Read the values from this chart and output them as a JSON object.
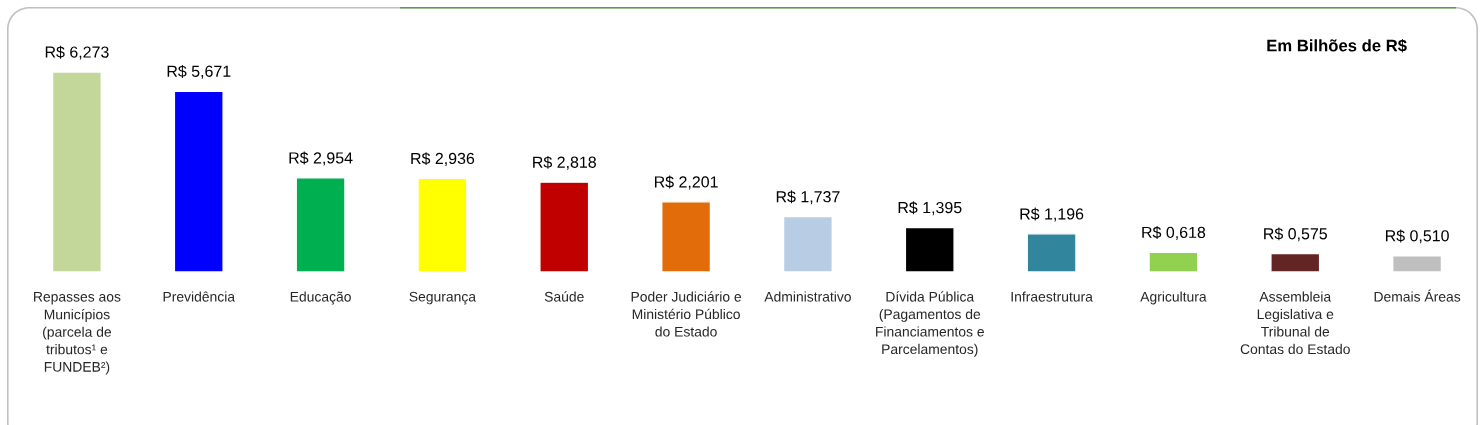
{
  "chart_data": {
    "type": "bar",
    "title": "Em Bilhões de R$",
    "categories": [
      "Repasses aos\nMunicípios\n(parcela de\ntributos¹ e\nFUNDEB²)",
      "Previdência",
      "Educação",
      "Segurança",
      "Saúde",
      "Poder Judiciário e\nMinistério Público\ndo Estado",
      "Administrativo",
      "Dívida Pública\n(Pagamentos de\nFinanciamentos e\nParcelamentos)",
      "Infraestrutura",
      "Agricultura",
      "Assembleia\nLegislativa e\nTribunal de\nContas do Estado",
      "Demais Áreas"
    ],
    "values": [
      6.273,
      5.671,
      2.954,
      2.936,
      2.818,
      2.201,
      1.737,
      1.395,
      1.196,
      0.618,
      0.575,
      0.51
    ],
    "colors": [
      "#c4d79b",
      "#0000ff",
      "#00b050",
      "#ffff00",
      "#c00000",
      "#e26b0a",
      "#b8cce4",
      "#000000",
      "#31859c",
      "#92d050",
      "#632523",
      "#bfbfbf"
    ],
    "value_labels": [
      "R$ 6,273",
      "R$ 5,671",
      "R$ 2,954",
      "R$ 2,936",
      "R$ 2,818",
      "R$ 2,201",
      "R$ 1,737",
      "R$ 1,395",
      "R$ 1,196",
      "R$ 0,618",
      "R$ 0,575",
      "R$ 0,510"
    ]
  }
}
